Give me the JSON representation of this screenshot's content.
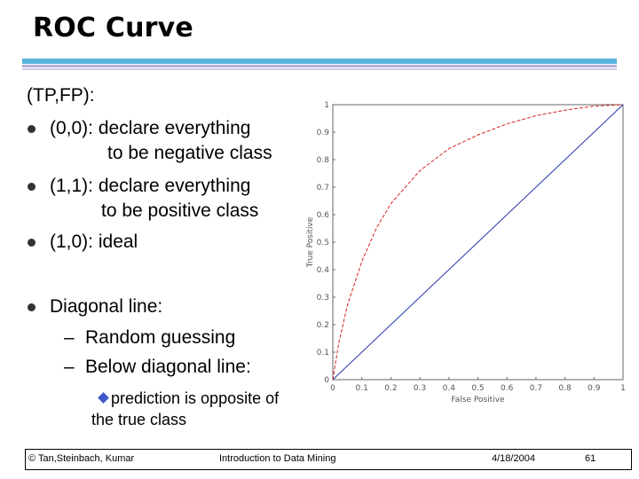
{
  "slide": {
    "title": "ROC Curve",
    "intro": "(TP,FP):",
    "bullets": [
      {
        "line1": "(0,0): declare everything",
        "line2": "to be negative class"
      },
      {
        "line1": "(1,1): declare everything",
        "line2": "to be positive class"
      },
      {
        "line1": "(1,0): ideal"
      }
    ],
    "diagonal": {
      "heading": "Diagonal line:",
      "sub1": "Random guessing",
      "sub2": "Below diagonal line:",
      "subsub_line1": "prediction is opposite of",
      "subsub_line2": "the true class",
      "dash": "–"
    }
  },
  "footer": {
    "left": "© Tan,Steinbach, Kumar",
    "center": "Introduction to Data Mining",
    "date": "4/18/2004",
    "page": "61"
  },
  "colors": {
    "accent_bar": "#5ab4df",
    "curve": "#d42424",
    "diagonal": "#2233aa"
  },
  "chart_data": {
    "type": "line",
    "xlabel": "False Positive",
    "ylabel": "True Positive",
    "xlim": [
      0,
      1
    ],
    "ylim": [
      0,
      1
    ],
    "x_ticks": [
      "0",
      "0.1",
      "0.2",
      "0.3",
      "0.4",
      "0.5",
      "0.6",
      "0.7",
      "0.8",
      "0.9",
      "1"
    ],
    "y_ticks": [
      "0",
      "0.1",
      "0.2",
      "0.3",
      "0.4",
      "0.5",
      "0.6",
      "0.7",
      "0.8",
      "0.9",
      "1"
    ],
    "grid": false,
    "series": [
      {
        "style": "dashed",
        "color": "#d42424",
        "x": [
          0,
          0.02,
          0.05,
          0.1,
          0.15,
          0.2,
          0.3,
          0.4,
          0.5,
          0.6,
          0.7,
          0.8,
          0.9,
          1.0
        ],
        "y": [
          0,
          0.13,
          0.27,
          0.43,
          0.55,
          0.64,
          0.76,
          0.84,
          0.89,
          0.93,
          0.96,
          0.98,
          0.995,
          1.0
        ]
      },
      {
        "style": "solid",
        "color": "#2233aa",
        "x": [
          0,
          1
        ],
        "y": [
          0,
          1
        ]
      }
    ]
  }
}
